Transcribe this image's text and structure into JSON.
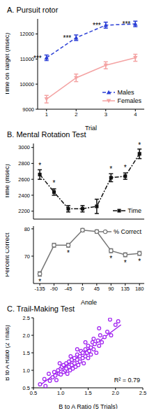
{
  "chart_data": [
    {
      "type": "line",
      "title": "A. Pursuit rotor",
      "x_label": "Trial",
      "y_label": "Time on Target (msec)",
      "x": [
        1,
        2,
        3,
        4
      ],
      "xlim": [
        0.7,
        4.3
      ],
      "xticks": [
        1,
        2,
        3,
        4
      ],
      "ylim": [
        9000,
        12600
      ],
      "yticks": [
        9000,
        10000,
        11000,
        12000
      ],
      "legend": "bottom right",
      "significance": "***",
      "series": [
        {
          "name": "Males",
          "color": "#2b3fd6",
          "marker": "triangle",
          "line_style": "dashed",
          "values": [
            11050,
            11850,
            12350,
            12400
          ],
          "errors": [
            110,
            110,
            120,
            110
          ],
          "significant": [
            true,
            true,
            true,
            true
          ]
        },
        {
          "name": "Females",
          "color": "#f4a3a3",
          "marker": "triangle_down",
          "line_style": "solid",
          "values": [
            9400,
            10250,
            10750,
            11050
          ],
          "errors": [
            150,
            150,
            140,
            140
          ]
        }
      ]
    },
    {
      "type": "line",
      "title": "B. Mental Rotation Test",
      "y_label": "Time (msec)",
      "tick_labels": "y",
      "x": [
        -135,
        -90,
        -45,
        0,
        45,
        90,
        135,
        180
      ],
      "xlim": [
        -155,
        195
      ],
      "xticks": [
        -135,
        -90,
        -45,
        0,
        45,
        90,
        135,
        180
      ],
      "ylim": [
        2100,
        3050
      ],
      "yticks": [
        2200,
        2400,
        2600,
        2800,
        3000
      ],
      "legend": "bottom right",
      "significance": "*",
      "series": [
        {
          "name": "Time",
          "color": "#111111",
          "marker": "square",
          "line_style": "dashdot",
          "values": [
            2660,
            2440,
            2230,
            2230,
            2260,
            2620,
            2640,
            2920
          ],
          "errors": [
            60,
            40,
            40,
            40,
            90,
            50,
            40,
            60
          ],
          "significant": [
            true,
            true,
            false,
            false,
            false,
            true,
            true,
            true
          ]
        }
      ]
    },
    {
      "type": "line",
      "x_label": "Angle",
      "y_label": "Percent Correct",
      "x": [
        -135,
        -90,
        -45,
        0,
        45,
        90,
        135,
        180
      ],
      "xlim": [
        -155,
        195
      ],
      "xticks": [
        -135,
        -90,
        -45,
        0,
        45,
        90,
        135,
        180
      ],
      "ylim": [
        60,
        81
      ],
      "yticks": [
        70,
        80
      ],
      "legend": "top right",
      "significance": "*",
      "series": [
        {
          "name": "% Correct",
          "color": "#777777",
          "marker": "open_circle",
          "line_style": "solid",
          "values": [
            63.5,
            74,
            74,
            79.5,
            79,
            72,
            70.5,
            71
          ],
          "errors": [
            0.8,
            0.7,
            0.7,
            0.6,
            0.6,
            0.7,
            0.7,
            0.7
          ],
          "significant": [
            true,
            false,
            true,
            false,
            false,
            true,
            true,
            true
          ]
        }
      ]
    },
    {
      "type": "scatter",
      "title": "C. Trail-Making Test",
      "x_label": "B to A Ratio (5 Trials)",
      "y_label": "B to A Ratio (2 Trials)",
      "xlim": [
        0.5,
        2.5
      ],
      "xticks": [
        0.5,
        {
          "value": 1,
          "label": "1.0"
        },
        1.5,
        {
          "value": 2,
          "label": "2.0"
        },
        2.5
      ],
      "ylim": [
        0.5,
        2.5
      ],
      "yticks": [
        0.5,
        {
          "value": 1,
          "label": "1.0"
        },
        1.5,
        {
          "value": 2,
          "label": "2.0"
        },
        2.5
      ],
      "color": "#a020f0",
      "marker": "open_circle",
      "annotation": "R² = 0.79",
      "trend_line": {
        "x": [
          0.6,
          2.1
        ],
        "y": [
          0.55,
          2.3
        ]
      },
      "x": [
        0.62,
        0.7,
        0.72,
        0.78,
        0.8,
        0.85,
        0.88,
        0.9,
        0.92,
        0.95,
        0.97,
        1.0,
        1.0,
        1.02,
        1.05,
        1.05,
        1.08,
        1.1,
        1.1,
        1.12,
        1.15,
        1.15,
        1.17,
        1.2,
        1.2,
        1.22,
        1.25,
        1.25,
        1.27,
        1.3,
        1.3,
        1.32,
        1.35,
        1.35,
        1.37,
        1.4,
        1.4,
        1.42,
        1.45,
        1.45,
        1.48,
        1.5,
        1.5,
        1.52,
        1.55,
        1.55,
        1.58,
        1.6,
        1.62,
        1.65,
        1.68,
        1.7,
        1.72,
        1.75,
        1.8,
        1.85,
        1.9,
        1.92,
        2.0,
        2.05,
        1.3,
        1.18,
        1.45,
        0.98,
        1.6,
        1.7
      ],
      "y": [
        0.6,
        0.75,
        0.55,
        0.9,
        0.7,
        0.8,
        0.95,
        0.85,
        0.72,
        1.0,
        0.9,
        1.05,
        0.88,
        1.1,
        0.95,
        1.15,
        1.0,
        1.2,
        1.05,
        0.9,
        1.25,
        1.1,
        1.0,
        1.3,
        1.15,
        1.05,
        1.35,
        1.2,
        1.1,
        1.45,
        1.3,
        1.15,
        1.4,
        1.25,
        1.55,
        1.35,
        1.5,
        1.2,
        1.6,
        1.4,
        1.5,
        1.7,
        1.35,
        1.55,
        1.65,
        1.45,
        1.8,
        1.6,
        1.75,
        1.5,
        1.85,
        1.7,
        2.0,
        1.8,
        1.95,
        2.1,
        2.45,
        2.0,
        2.3,
        2.4,
        1.6,
        1.4,
        1.8,
        1.2,
        1.9,
        2.2
      ]
    }
  ]
}
